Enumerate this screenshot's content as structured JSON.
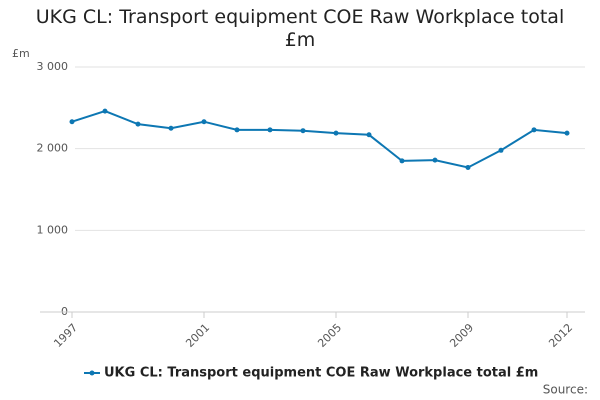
{
  "chart_data": {
    "type": "line",
    "title": "UKG CL: Transport equipment COE Raw Workplace total £m",
    "y_unit": "£m",
    "x": [
      1997,
      1998,
      1999,
      2000,
      2001,
      2002,
      2003,
      2004,
      2005,
      2006,
      2007,
      2008,
      2009,
      2010,
      2011,
      2012
    ],
    "series": [
      {
        "name": "UKG CL: Transport equipment COE Raw Workplace total £m",
        "color": "#0d77b3",
        "values": [
          2330,
          2460,
          2300,
          2250,
          2330,
          2230,
          2230,
          2220,
          2190,
          2170,
          1850,
          1860,
          1770,
          1980,
          2230,
          2190
        ]
      }
    ],
    "xlim": [
      1997,
      2012
    ],
    "xticks": [
      1997,
      2001,
      2005,
      2009,
      2012
    ],
    "ylim": [
      0,
      3000
    ],
    "yticks": [
      0,
      {
        "value": 1000,
        "label": "1 000"
      },
      {
        "value": 2000,
        "label": "2 000"
      },
      {
        "value": 3000,
        "label": "3 000"
      }
    ],
    "grid": true,
    "source": "Source:"
  }
}
